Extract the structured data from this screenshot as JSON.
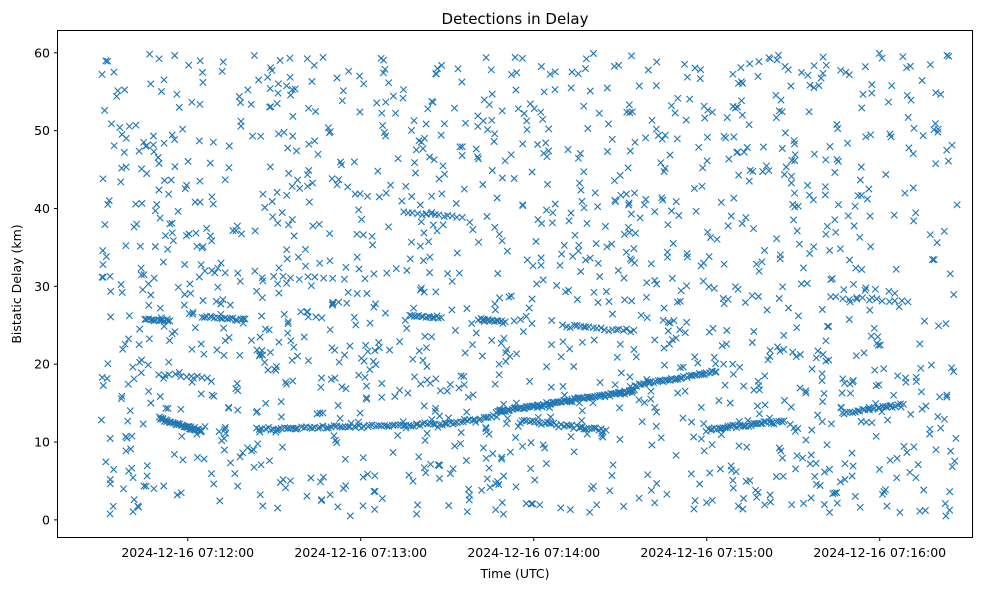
{
  "chart_data": {
    "type": "scatter",
    "title": "Detections in Delay",
    "xlabel": "Time (UTC)",
    "ylabel": "Bistatic Delay (km)",
    "marker": "x",
    "color": "#1f77b4",
    "grid": false,
    "x_range": [
      "2024-12-16 07:11:15",
      "2024-12-16 07:16:32"
    ],
    "ylim": [
      -2.2,
      62.8
    ],
    "x_ticks": [
      "2024-12-16 07:12:00",
      "2024-12-16 07:13:00",
      "2024-12-16 07:14:00",
      "2024-12-16 07:15:00",
      "2024-12-16 07:16:00"
    ],
    "y_ticks": [
      0,
      10,
      20,
      30,
      40,
      50,
      60
    ],
    "data_window": [
      "2024-12-16 07:11:30",
      "2024-12-16 07:16:27"
    ],
    "tracks": [
      {
        "x": [
          "2024-12-16 07:11:50",
          "2024-12-16 07:12:05"
        ],
        "y": [
          13.0,
          11.4
        ],
        "n": 40
      },
      {
        "x": [
          "2024-12-16 07:12:24",
          "2024-12-16 07:13:30"
        ],
        "y": [
          11.7,
          12.4
        ],
        "n": 70
      },
      {
        "x": [
          "2024-12-16 07:13:30",
          "2024-12-16 07:13:47"
        ],
        "y": [
          12.3,
          13.3
        ],
        "n": 20
      },
      {
        "x": [
          "2024-12-16 07:13:47",
          "2024-12-16 07:14:35"
        ],
        "y": [
          13.9,
          16.6
        ],
        "n": 90
      },
      {
        "x": [
          "2024-12-16 07:14:35",
          "2024-12-16 07:15:03"
        ],
        "y": [
          17.3,
          19.0
        ],
        "n": 40
      },
      {
        "x": [
          "2024-12-16 07:13:56",
          "2024-12-16 07:14:25"
        ],
        "y": [
          12.8,
          11.4
        ],
        "n": 35
      },
      {
        "x": [
          "2024-12-16 07:15:00",
          "2024-12-16 07:15:27"
        ],
        "y": [
          11.6,
          12.7
        ],
        "n": 40
      },
      {
        "x": [
          "2024-12-16 07:15:47",
          "2024-12-16 07:16:08"
        ],
        "y": [
          13.7,
          14.8
        ],
        "n": 25
      },
      {
        "x": [
          "2024-12-16 07:11:45",
          "2024-12-16 07:11:54"
        ],
        "y": [
          25.8,
          25.6
        ],
        "n": 14
      },
      {
        "x": [
          "2024-12-16 07:12:05",
          "2024-12-16 07:12:20"
        ],
        "y": [
          26.1,
          25.6
        ],
        "n": 18
      },
      {
        "x": [
          "2024-12-16 07:13:17",
          "2024-12-16 07:13:28"
        ],
        "y": [
          26.3,
          26.0
        ],
        "n": 15
      },
      {
        "x": [
          "2024-12-16 07:13:41",
          "2024-12-16 07:13:50"
        ],
        "y": [
          25.8,
          25.4
        ],
        "n": 14
      },
      {
        "x": [
          "2024-12-16 07:14:10",
          "2024-12-16 07:14:35"
        ],
        "y": [
          24.9,
          24.2
        ],
        "n": 20
      },
      {
        "x": [
          "2024-12-16 07:11:50",
          "2024-12-16 07:12:07"
        ],
        "y": [
          18.6,
          18.4
        ],
        "n": 10
      },
      {
        "x": [
          "2024-12-16 07:13:15",
          "2024-12-16 07:13:35"
        ],
        "y": [
          39.5,
          39.0
        ],
        "n": 14
      },
      {
        "x": [
          "2024-12-16 07:12:30",
          "2024-12-16 07:12:50"
        ],
        "y": [
          31.2,
          31.0
        ],
        "n": 8
      },
      {
        "x": [
          "2024-12-16 07:15:45",
          "2024-12-16 07:16:10"
        ],
        "y": [
          28.5,
          28.0
        ],
        "n": 12
      }
    ],
    "clutter_points": 1500
  }
}
